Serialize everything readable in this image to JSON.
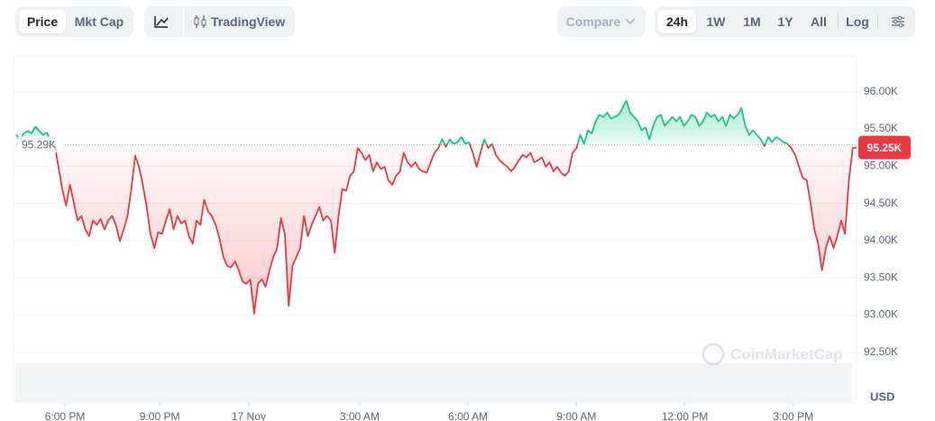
{
  "toolbar": {
    "view_tabs": [
      "Price",
      "Mkt Cap"
    ],
    "chart_tab": "TradingView",
    "compare": "Compare",
    "ranges": [
      "24h",
      "1W",
      "1M",
      "1Y",
      "All"
    ],
    "log": "Log"
  },
  "chart_data": {
    "type": "line",
    "up_color": "#16c784",
    "down_color": "#ea3943",
    "baseline": 95290,
    "baseline_label": "95.29K",
    "last_label": "95.25K",
    "watermark": "CoinMarketCap",
    "y_unit": "USD",
    "grid": true,
    "ylim": [
      91820,
      96480
    ],
    "xlim": [
      0,
      219
    ],
    "yticks": [
      {
        "value": 92500,
        "label": "92.50K"
      },
      {
        "value": 93000,
        "label": "93.00K"
      },
      {
        "value": 93500,
        "label": "93.50K"
      },
      {
        "value": 94000,
        "label": "94.00K"
      },
      {
        "value": 94500,
        "label": "94.50K"
      },
      {
        "value": 95000,
        "label": "95.00K"
      },
      {
        "value": 95500,
        "label": "95.50K"
      },
      {
        "value": 96000,
        "label": "96.00K"
      }
    ],
    "xticks": [
      {
        "value": 12.7,
        "label": "6:00 PM"
      },
      {
        "value": 37.4,
        "label": "9:00 PM"
      },
      {
        "value": 60.6,
        "label": "17 Nov"
      },
      {
        "value": 89.5,
        "label": "3:00 AM"
      },
      {
        "value": 117.75,
        "label": "6:00 AM"
      },
      {
        "value": 146,
        "label": "9:00 AM"
      },
      {
        "value": 174.25,
        "label": "12:00 PM"
      },
      {
        "value": 202.5,
        "label": "3:00 PM"
      }
    ],
    "values": [
      95420,
      95360,
      95440,
      95470,
      95440,
      95530,
      95470,
      95420,
      95450,
      95330,
      95300,
      94990,
      94690,
      94470,
      94750,
      94510,
      94270,
      94330,
      94150,
      94060,
      94270,
      94210,
      94290,
      94150,
      94270,
      94330,
      94210,
      93990,
      94150,
      94330,
      94690,
      95140,
      94990,
      94750,
      94450,
      94090,
      93900,
      94110,
      94090,
      94270,
      94420,
      94150,
      94330,
      94230,
      94270,
      94060,
      93960,
      94270,
      94210,
      94550,
      94390,
      94330,
      94210,
      94020,
      93780,
      93660,
      93640,
      93720,
      93600,
      93450,
      93420,
      93480,
      93020,
      93420,
      93480,
      93380,
      93600,
      93780,
      93900,
      94300,
      94090,
      93120,
      93660,
      93780,
      93900,
      94330,
      94060,
      94210,
      94330,
      94450,
      94270,
      94330,
      94270,
      93840,
      94330,
      94690,
      94670,
      94870,
      94930,
      95240,
      95180,
      95080,
      95150,
      94930,
      95050,
      94960,
      94990,
      94810,
      94750,
      94870,
      94930,
      95180,
      95050,
      94990,
      95050,
      94960,
      94930,
      94910,
      95050,
      95180,
      95240,
      95360,
      95260,
      95360,
      95300,
      95320,
      95390,
      95300,
      95320,
      95180,
      94990,
      95180,
      95360,
      95240,
      95300,
      95150,
      95080,
      95030,
      94990,
      94930,
      94990,
      95080,
      95150,
      95120,
      95180,
      95050,
      95080,
      95120,
      94990,
      95050,
      94930,
      94990,
      94910,
      94870,
      94930,
      95180,
      95240,
      95420,
      95300,
      95480,
      95440,
      95600,
      95690,
      95660,
      95720,
      95640,
      95660,
      95690,
      95780,
      95880,
      95720,
      95660,
      95600,
      95480,
      95520,
      95360,
      95540,
      95660,
      95690,
      95540,
      95600,
      95660,
      95600,
      95660,
      95540,
      95600,
      95690,
      95660,
      95540,
      95600,
      95720,
      95660,
      95690,
      95600,
      95660,
      95540,
      95690,
      95640,
      95690,
      95780,
      95540,
      95420,
      95480,
      95420,
      95360,
      95270,
      95390,
      95320,
      95390,
      95360,
      95320,
      95300,
      95240,
      95150,
      94990,
      94840,
      94810,
      94510,
      94150,
      93960,
      93600,
      93900,
      94060,
      93900,
      94060,
      94270,
      94090,
      94810,
      95240,
      95250
    ]
  }
}
